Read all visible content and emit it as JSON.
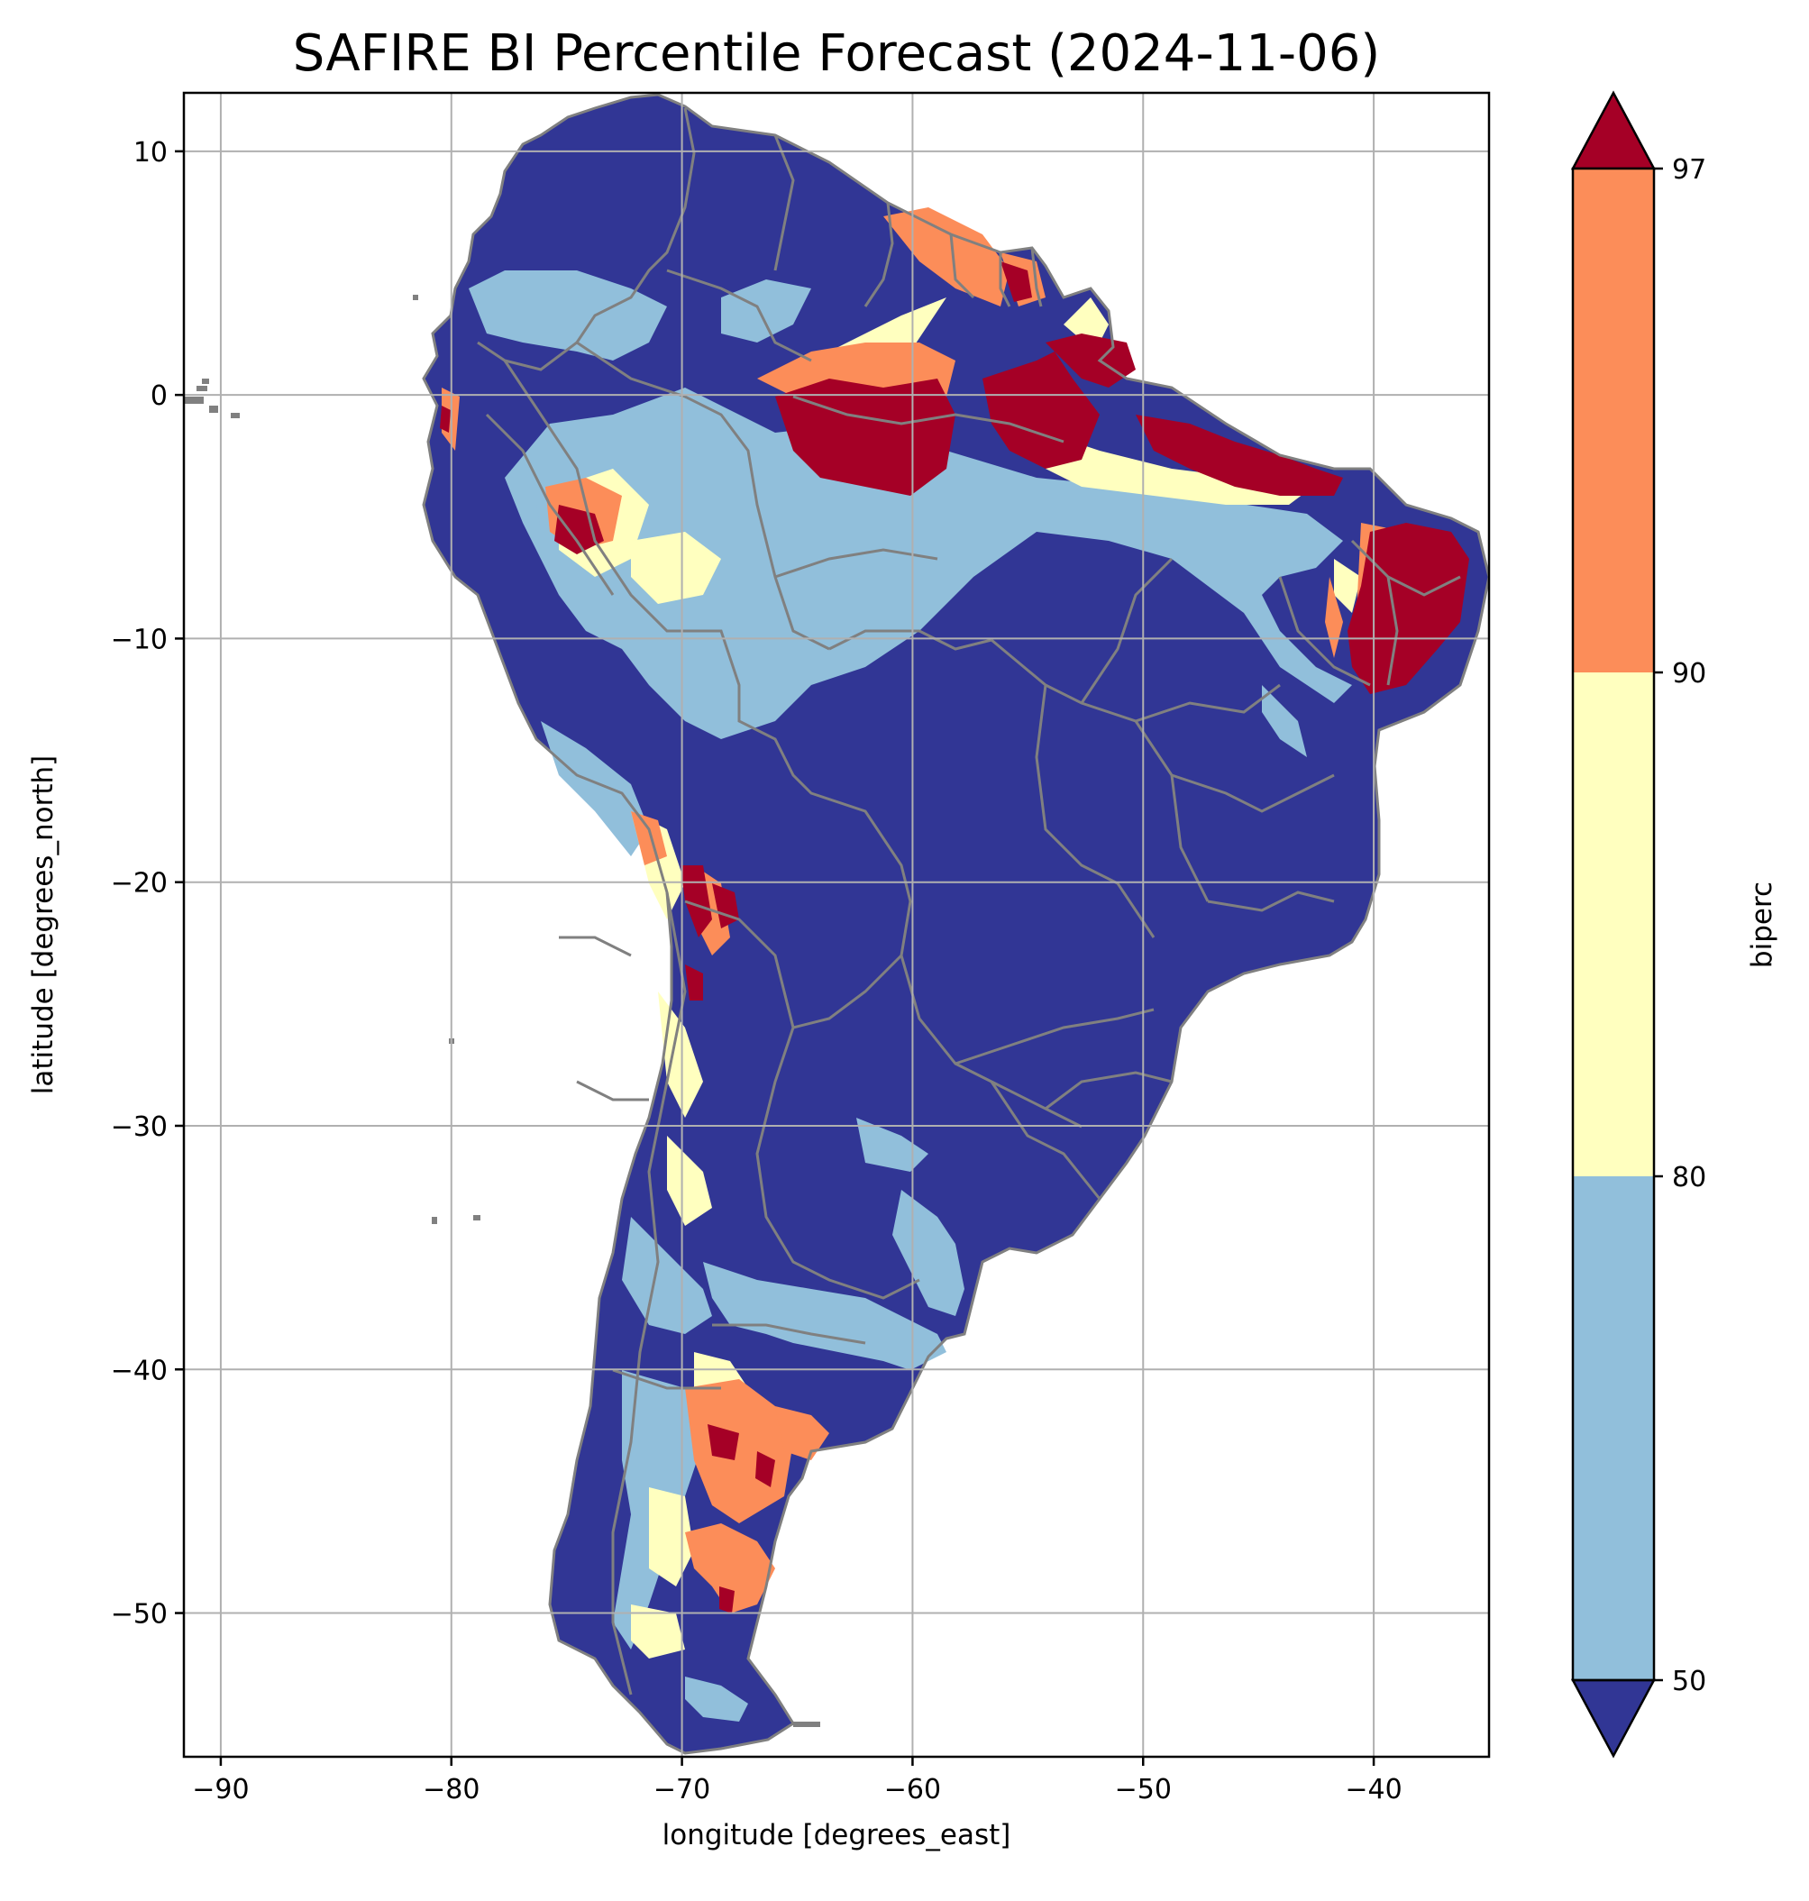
{
  "title": "SAFIRE BI Percentile Forecast (2024-11-06)",
  "xlabel": "longitude [degrees_east]",
  "ylabel": "latitude [degrees_north]",
  "chart_data": {
    "type": "heatmap",
    "title": "SAFIRE BI Percentile Forecast (2024-11-06)",
    "xlabel": "longitude [degrees_east]",
    "ylabel": "latitude [degrees_north]",
    "xlim": [
      -91.6,
      -35.0
    ],
    "ylim": [
      -55.9,
      12.4
    ],
    "xticks": [
      -90,
      -80,
      -70,
      -60,
      -50,
      -40
    ],
    "yticks": [
      10,
      0,
      -10,
      -20,
      -30,
      -40,
      -50
    ],
    "xtick_labels": [
      "−90",
      "−80",
      "−70",
      "−60",
      "−50",
      "−40"
    ],
    "ytick_labels": [
      "10",
      "0",
      "−10",
      "−20",
      "−30",
      "−40",
      "−50"
    ],
    "grid": true,
    "colorbar": {
      "label": "biperc",
      "extend": "both",
      "boundaries": [
        50,
        80,
        90,
        97
      ],
      "tick_labels": [
        "50",
        "80",
        "90",
        "97"
      ],
      "colors": {
        "below_50": "#313695",
        "50_80": "#91bfdb",
        "80_90": "#ffffbf",
        "90_97": "#fc8d59",
        "above_97": "#a50026"
      }
    },
    "border_color": "#808080"
  }
}
